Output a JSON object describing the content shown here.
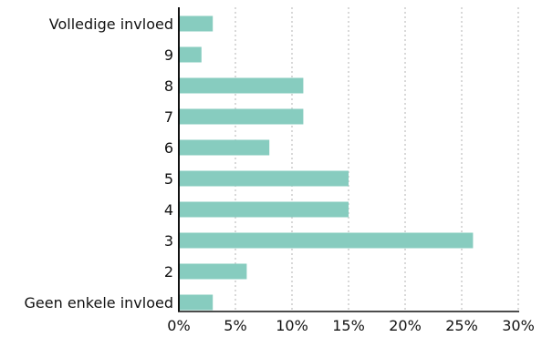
{
  "chart_data": {
    "type": "bar",
    "orientation": "horizontal",
    "categories": [
      "Volledige invloed",
      "9",
      "8",
      "7",
      "6",
      "5",
      "4",
      "3",
      "2",
      "Geen enkele invloed"
    ],
    "values": [
      3,
      2,
      11,
      11,
      8,
      15,
      15,
      26,
      6,
      3
    ],
    "x_ticks": [
      "0%",
      "5%",
      "10%",
      "15%",
      "20%",
      "25%",
      "30%"
    ],
    "xlim": [
      0,
      30
    ],
    "value_unit": "%",
    "grid": "vertical dotted",
    "legend": "none",
    "bar_color": "#87ccbf",
    "axis_color": "#111111",
    "grid_color": "#b3b3b3"
  }
}
